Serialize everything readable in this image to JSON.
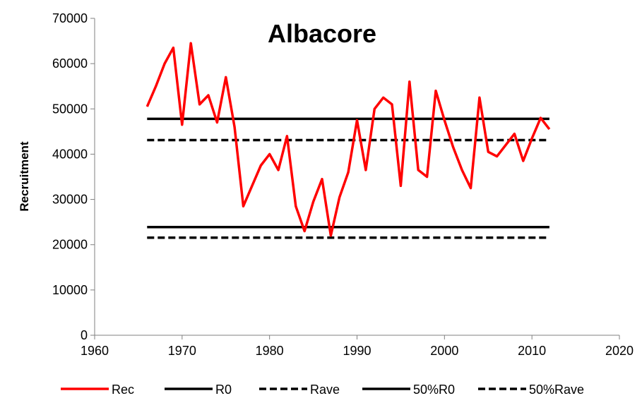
{
  "chart_data": {
    "type": "line",
    "title": "Albacore",
    "xlabel": "",
    "ylabel": "Recruitment",
    "xlim": [
      1960,
      2020
    ],
    "ylim": [
      0,
      70000
    ],
    "xticks": [
      1960,
      1970,
      1980,
      1990,
      2000,
      2010,
      2020
    ],
    "yticks": [
      0,
      10000,
      20000,
      30000,
      40000,
      50000,
      60000,
      70000
    ],
    "grid": false,
    "legend_position": "bottom",
    "series": [
      {
        "name": "Rec",
        "color": "#ff0000",
        "dash": "solid",
        "x": [
          1966,
          1967,
          1968,
          1969,
          1970,
          1971,
          1972,
          1973,
          1974,
          1975,
          1976,
          1977,
          1978,
          1979,
          1980,
          1981,
          1982,
          1983,
          1984,
          1985,
          1986,
          1987,
          1988,
          1989,
          1990,
          1991,
          1992,
          1993,
          1994,
          1995,
          1996,
          1997,
          1998,
          1999,
          2000,
          2001,
          2002,
          2003,
          2004,
          2005,
          2006,
          2007,
          2008,
          2009,
          2010,
          2011,
          2012
        ],
        "y": [
          50500,
          55000,
          60000,
          63500,
          46500,
          64500,
          51000,
          53000,
          47000,
          57000,
          46000,
          28500,
          33000,
          37500,
          40000,
          36500,
          44000,
          28500,
          23000,
          29500,
          34500,
          22000,
          30500,
          36000,
          47500,
          36500,
          50000,
          52500,
          51000,
          33000,
          56000,
          36500,
          35000,
          54000,
          47500,
          41500,
          36500,
          32500,
          52500,
          40500,
          39500,
          42000,
          44500,
          38500,
          43500,
          48000,
          45500
        ]
      },
      {
        "name": "R0",
        "color": "#000000",
        "dash": "solid",
        "x": [
          1966,
          2012
        ],
        "y": [
          47800,
          47800
        ]
      },
      {
        "name": "Rave",
        "color": "#000000",
        "dash": "dashed",
        "x": [
          1966,
          2012
        ],
        "y": [
          43100,
          43100
        ]
      },
      {
        "name": "50%R0",
        "color": "#000000",
        "dash": "solid",
        "x": [
          1966,
          2012
        ],
        "y": [
          23900,
          23900
        ]
      },
      {
        "name": "50%Rave",
        "color": "#000000",
        "dash": "dashed",
        "x": [
          1966,
          2012
        ],
        "y": [
          21550,
          21550
        ]
      }
    ]
  }
}
